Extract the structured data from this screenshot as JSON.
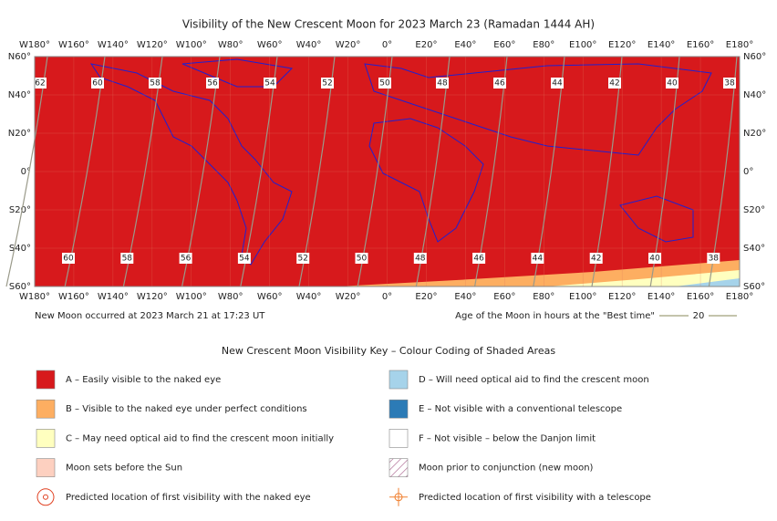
{
  "title": "Visibility of the New Crescent Moon for 2023 March 23 (Ramadan 1444 AH)",
  "map": {
    "longitude_labels": [
      "W180°",
      "W160°",
      "W140°",
      "W120°",
      "W100°",
      "W80°",
      "W60°",
      "W40°",
      "W20°",
      "0°",
      "E20°",
      "E40°",
      "E60°",
      "E80°",
      "E100°",
      "E120°",
      "E140°",
      "E160°",
      "E180°"
    ],
    "latitude_labels": [
      "N60°",
      "N40°",
      "N20°",
      "0°",
      "S20°",
      "S40°",
      "S60°"
    ],
    "contour_labels_top": [
      62,
      60,
      58,
      56,
      54,
      52,
      50,
      48,
      46,
      44,
      42,
      40,
      38
    ],
    "contour_labels_bottom": [
      60,
      58,
      56,
      54,
      52,
      50,
      48,
      46,
      44,
      42,
      40,
      38
    ]
  },
  "footer": {
    "new_moon": "New Moon occurred at 2023 March 21 at 17:23 UT",
    "age_caption": "Age of the Moon in hours at the \"Best time\"",
    "age_sample": 20
  },
  "key": {
    "title": "New Crescent Moon Visibility Key – Colour Coding of Shaded Areas",
    "items": [
      {
        "label": "A – Easily visible to the naked eye",
        "color": "#d7191c"
      },
      {
        "label": "D – Will need optical aid to find the crescent moon",
        "color": "#a6d3ea"
      },
      {
        "label": "B – Visible to the naked eye under perfect conditions",
        "color": "#fdae61"
      },
      {
        "label": "E – Not visible with a conventional telescope",
        "color": "#2c7bb6"
      },
      {
        "label": "C – May need optical aid to find the crescent moon initially",
        "color": "#ffffbf"
      },
      {
        "label": "F – Not visible – below the Danjon limit",
        "color": "#ffffff"
      },
      {
        "label": "Moon sets before the Sun",
        "color": "#fdd0c0"
      },
      {
        "label": "Moon prior to conjunction (new moon)",
        "color": "hatch"
      },
      {
        "label": "Predicted location of first visibility with the naked eye",
        "color": "circle"
      },
      {
        "label": "Predicted location of first visibility with a telescope",
        "color": "cross"
      }
    ]
  }
}
